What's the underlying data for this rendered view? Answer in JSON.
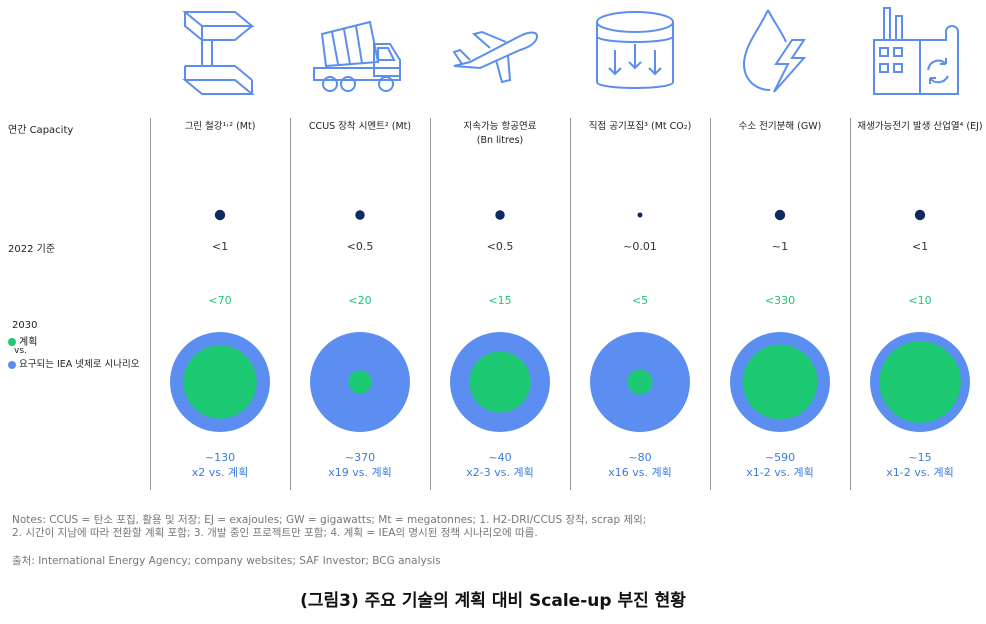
{
  "row_labels": {
    "capacity": "연간 Capacity",
    "baseline": "2022 기준",
    "year": "2030",
    "plan": "계획",
    "vs": "vs.",
    "required": "요구되는 IEA 넷제로 시나리오"
  },
  "colors": {
    "baseline": "#0f2a5e",
    "plan": "#1dc972",
    "required": "#5b8ef0",
    "icon": "#5b8ef0"
  },
  "icons": [
    "steel-beam-icon",
    "cement-truck-icon",
    "airplane-icon",
    "capture-tank-icon",
    "hydrogen-bolt-icon",
    "factory-recycle-icon"
  ],
  "chart_data": {
    "type": "bubble-table",
    "units_note": "annual capacity",
    "categories": [
      {
        "title": "그린 철강¹˒²   (Mt)",
        "subtitle": "",
        "baseline": "<1",
        "baseline_value": 1,
        "plan": "<70",
        "plan_value": 70,
        "required": "~130",
        "multiplier": "x2 vs. 계획",
        "required_value": 130
      },
      {
        "title": "CCUS 장착 시멘트² (Mt)",
        "subtitle": "",
        "baseline": "<0.5",
        "baseline_value": 0.5,
        "plan": "<20",
        "plan_value": 20,
        "required": "~370",
        "multiplier": "x19 vs. 계획",
        "required_value": 370
      },
      {
        "title": "지속가능 항공연료",
        "subtitle": "(Bn litres)",
        "baseline": "<0.5",
        "baseline_value": 0.5,
        "plan": "<15",
        "plan_value": 15,
        "required": "~40",
        "multiplier": "x2-3 vs. 계획",
        "required_value": 40
      },
      {
        "title": "직접 공기포집³ (Mt CO₂)",
        "subtitle": "",
        "baseline": "~0.01",
        "baseline_value": 0.01,
        "plan": "<5",
        "plan_value": 5,
        "required": "~80",
        "multiplier": "x16 vs. 계획",
        "required_value": 80
      },
      {
        "title": "수소 전기분해 (GW)",
        "subtitle": "",
        "baseline": "~1",
        "baseline_value": 1,
        "plan": "<330",
        "plan_value": 330,
        "required": "~590",
        "multiplier": "x1-2 vs. 계획",
        "required_value": 590
      },
      {
        "title": "재생가능전기 발생 산업열⁴ (EJ)",
        "subtitle": "",
        "baseline": "<1",
        "baseline_value": 1,
        "plan": "<10",
        "plan_value": 10,
        "required": "~15",
        "multiplier": "x1-2 vs. 계획",
        "required_value": 15
      }
    ]
  },
  "notes": {
    "line1": "Notes: CCUS = 탄소 포집, 활용 및 저장; EJ = exajoules; GW = gigawatts; Mt = megatonnes; 1. H2-DRI/CCUS 장착, scrap 제외;",
    "line2": "2. 시간이 지남에 따라 전환할 계획 포함; 3. 개발 중인 프로젝트만 포함; 4. 계획 = IEA의 명시된 정책 시나리오에 따름.",
    "source": "출처: International Energy Agency; company websites; SAF Investor; BCG analysis"
  },
  "caption": "(그림3) 주요 기술의 계획 대비 Scale-up 부진 현황"
}
